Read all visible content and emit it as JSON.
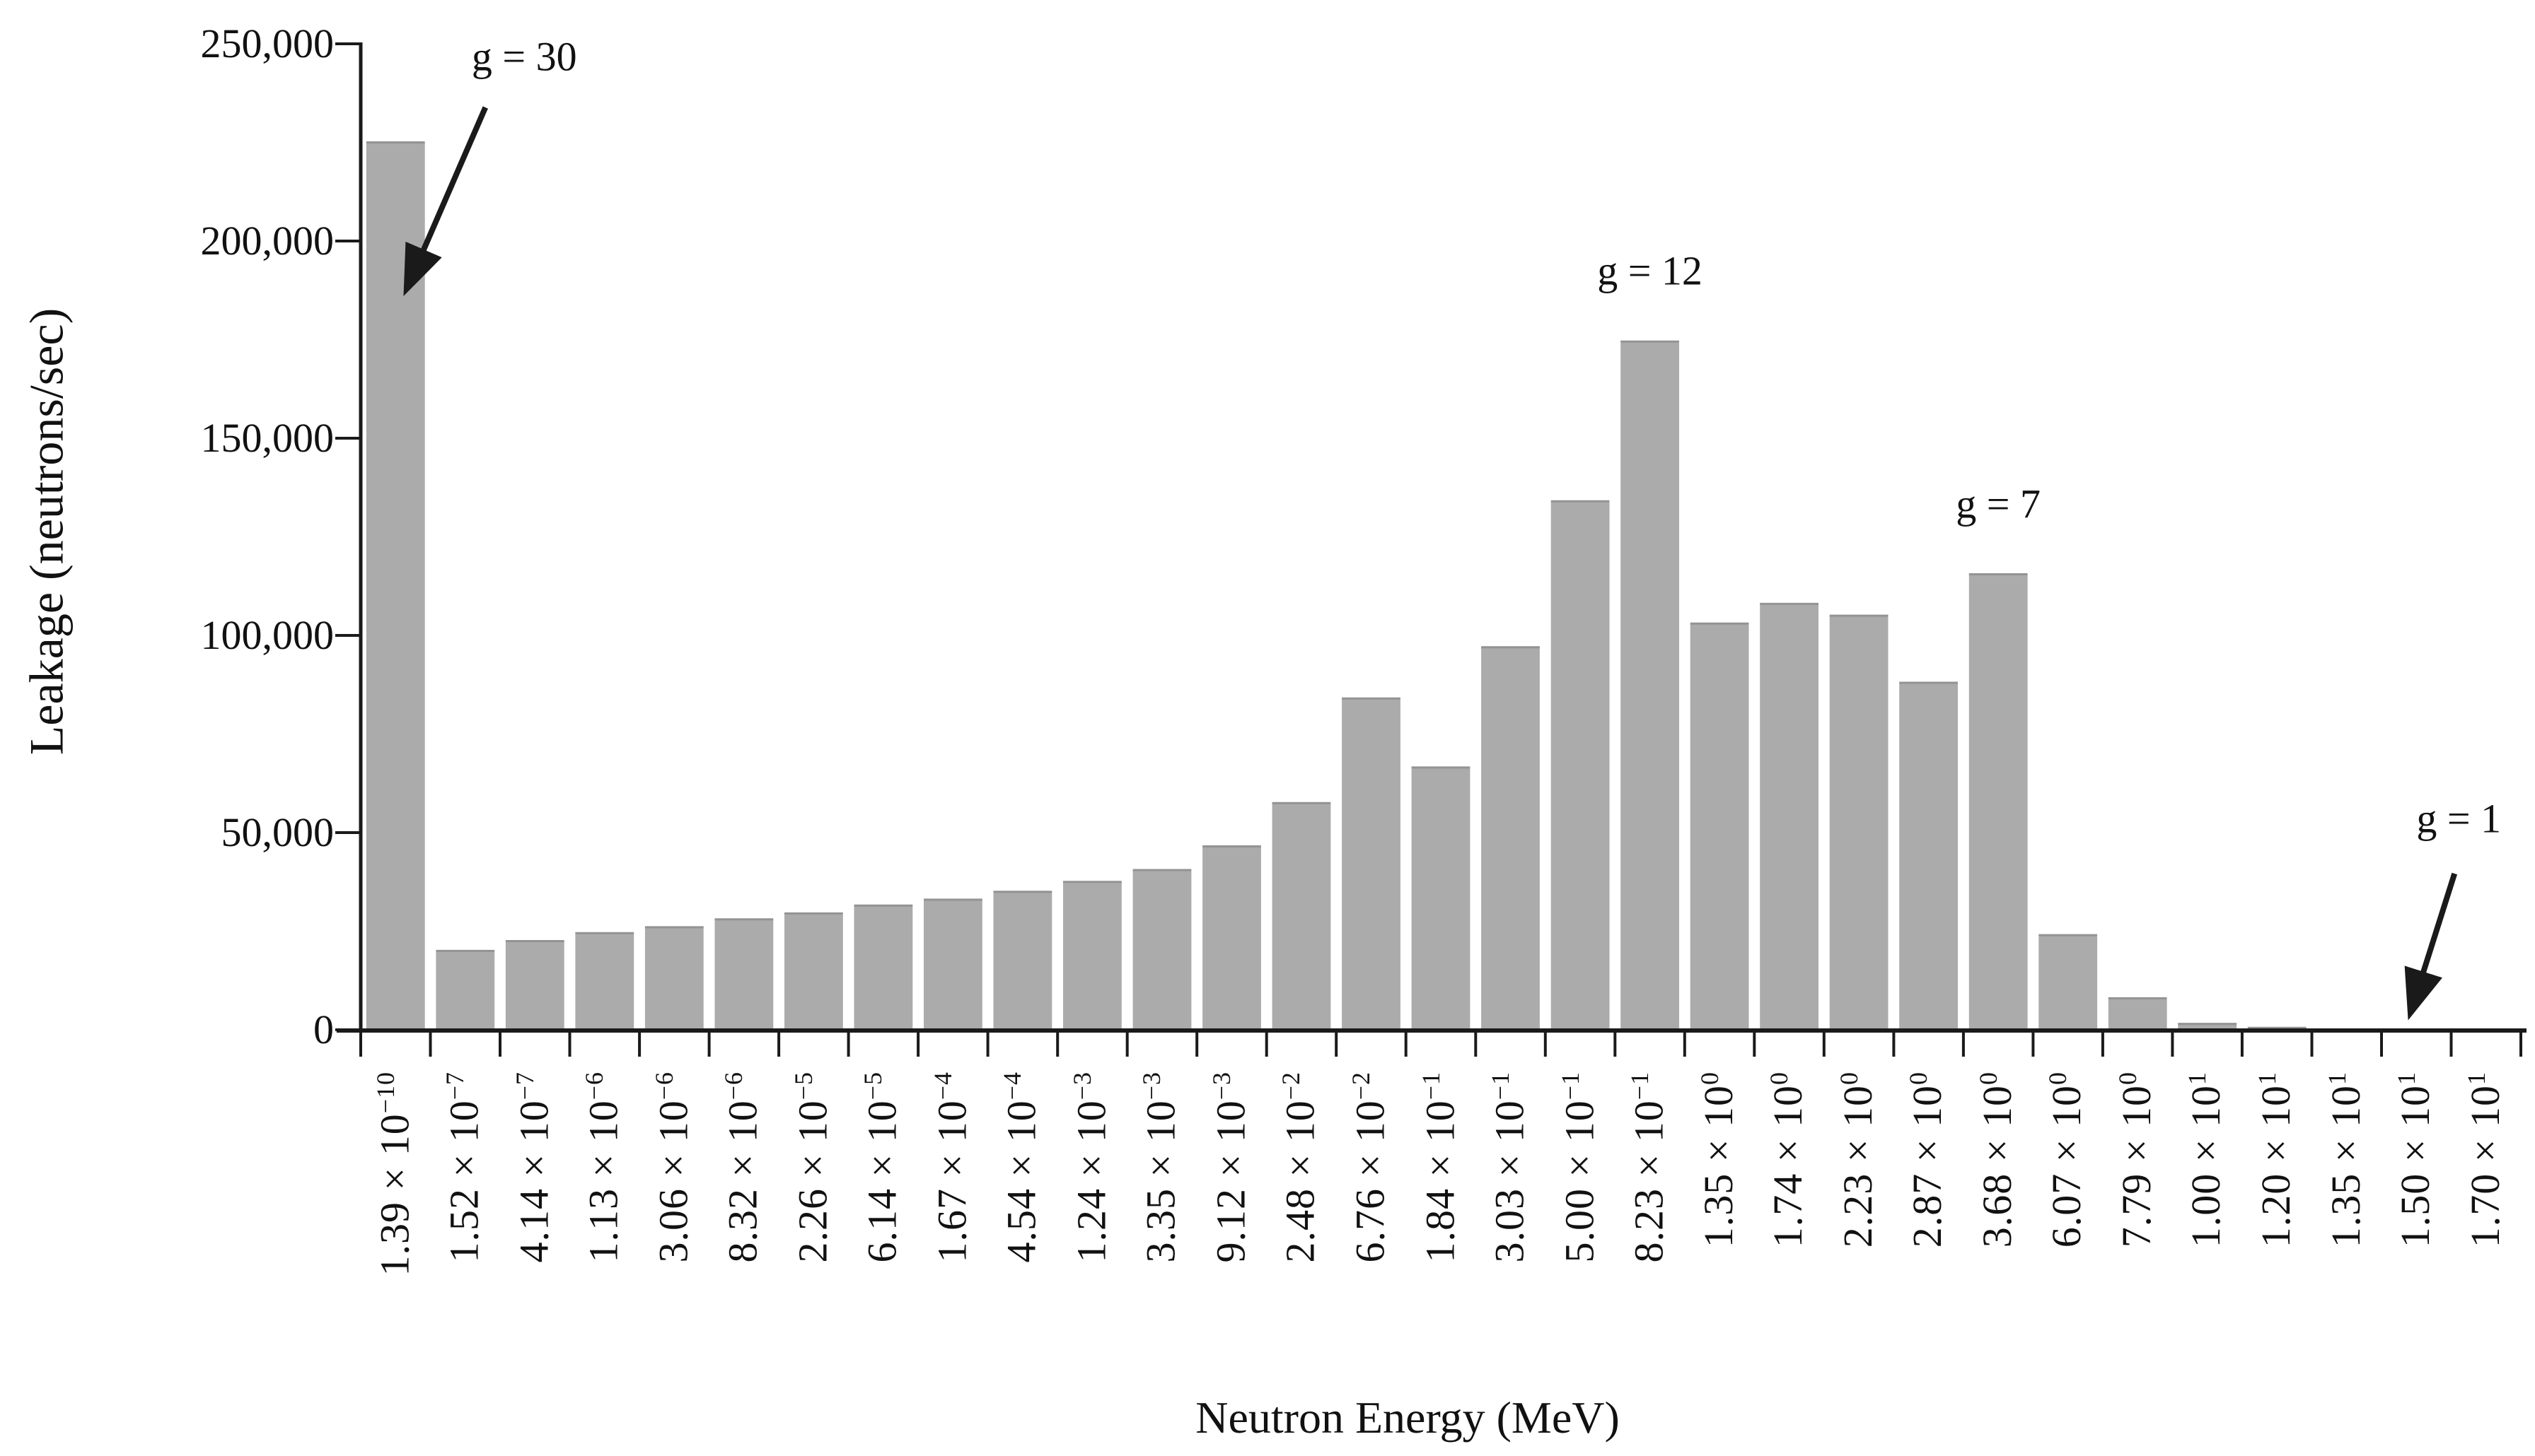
{
  "chart_data": {
    "type": "bar",
    "title": "",
    "xlabel": "Neutron Energy (MeV)",
    "ylabel": "Leakage (neutrons/sec)",
    "ylim": [
      0,
      250000
    ],
    "grid": false,
    "legend_position": "none",
    "bar_color": "#ababab",
    "bar_edge_color": "#939393",
    "axis_color": "#1a1a1a",
    "yticks": [
      {
        "value": 0,
        "label": "0"
      },
      {
        "value": 50000,
        "label": "50,000"
      },
      {
        "value": 100000,
        "label": "100,000"
      },
      {
        "value": 150000,
        "label": "150,000"
      },
      {
        "value": 200000,
        "label": "200,000"
      },
      {
        "value": 250000,
        "label": "250,000"
      }
    ],
    "categories": [
      {
        "m": "1.39",
        "e": "−10"
      },
      {
        "m": "1.52",
        "e": "−7"
      },
      {
        "m": "4.14",
        "e": "−7"
      },
      {
        "m": "1.13",
        "e": "−6"
      },
      {
        "m": "3.06",
        "e": "−6"
      },
      {
        "m": "8.32",
        "e": "−6"
      },
      {
        "m": "2.26",
        "e": "−5"
      },
      {
        "m": "6.14",
        "e": "−5"
      },
      {
        "m": "1.67",
        "e": "−4"
      },
      {
        "m": "4.54",
        "e": "−4"
      },
      {
        "m": "1.24",
        "e": "−3"
      },
      {
        "m": "3.35",
        "e": "−3"
      },
      {
        "m": "9.12",
        "e": "−3"
      },
      {
        "m": "2.48",
        "e": "−2"
      },
      {
        "m": "6.76",
        "e": "−2"
      },
      {
        "m": "1.84",
        "e": "−1"
      },
      {
        "m": "3.03",
        "e": "−1"
      },
      {
        "m": "5.00",
        "e": "−1"
      },
      {
        "m": "8.23",
        "e": "−1"
      },
      {
        "m": "1.35",
        "e": "0"
      },
      {
        "m": "1.74",
        "e": "0"
      },
      {
        "m": "2.23",
        "e": "0"
      },
      {
        "m": "2.87",
        "e": "0"
      },
      {
        "m": "3.68",
        "e": "0"
      },
      {
        "m": "6.07",
        "e": "0"
      },
      {
        "m": "7.79",
        "e": "0"
      },
      {
        "m": "1.00",
        "e": "1"
      },
      {
        "m": "1.20",
        "e": "1"
      },
      {
        "m": "1.35",
        "e": "1"
      },
      {
        "m": "1.50",
        "e": "1"
      },
      {
        "m": "1.70",
        "e": "1"
      }
    ],
    "values": [
      225000,
      20000,
      22500,
      24500,
      26000,
      28000,
      29500,
      31500,
      33000,
      35000,
      37500,
      40500,
      46500,
      57500,
      84000,
      66500,
      97000,
      134000,
      174500,
      103000,
      108000,
      105000,
      88000,
      115500,
      24000,
      8000,
      1500,
      500,
      0,
      0,
      0
    ],
    "annotations": [
      {
        "label": "g = 30",
        "bar": 1,
        "arrow": true
      },
      {
        "label": "g = 12",
        "bar": 19,
        "arrow": false
      },
      {
        "label": "g = 7",
        "bar": 24,
        "arrow": false
      },
      {
        "label": "g = 1",
        "bar": 30,
        "arrow": true
      }
    ]
  }
}
